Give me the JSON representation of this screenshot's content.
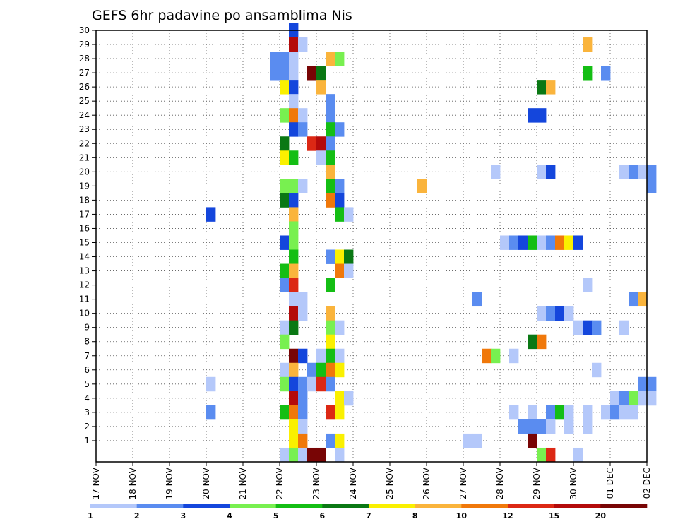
{
  "chart_data": {
    "type": "heatmap",
    "title": "GEFS 6hr padavine po ansamblima Nis",
    "xlabel": "",
    "ylabel": "",
    "x_tick_labels": [
      "17 NOV",
      "18 NOV",
      "19 NOV",
      "20 NOV",
      "21 NOV",
      "22 NOV",
      "23 NOV",
      "24 NOV",
      "25 NOV",
      "26 NOV",
      "27 NOV",
      "28 NOV",
      "29 NOV",
      "30 NOV",
      "01 DEC",
      "02 DEC"
    ],
    "y_tick_labels": [
      "1",
      "2",
      "3",
      "4",
      "5",
      "6",
      "7",
      "8",
      "9",
      "10",
      "11",
      "12",
      "13",
      "14",
      "15",
      "16",
      "17",
      "18",
      "19",
      "20",
      "21",
      "22",
      "23",
      "24",
      "25",
      "26",
      "27",
      "28",
      "29",
      "30"
    ],
    "xlim_steps": [
      0,
      60
    ],
    "ylim_members": [
      0,
      30
    ],
    "steps_per_day": 4,
    "grid": true,
    "legend_placement": "bottom",
    "legend_thresholds": [
      "1",
      "2",
      "3",
      "4",
      "5",
      "6",
      "7",
      "8",
      "10",
      "12",
      "15",
      "20"
    ],
    "colors": [
      "#b4c8fa",
      "#5a8cf0",
      "#1446dc",
      "#78f050",
      "#14be14",
      "#0a7814",
      "#faf000",
      "#fab43c",
      "#f0780a",
      "#dc2814",
      "#b40a0a",
      "#780505"
    ],
    "cells": [
      [
        21,
        30,
        2
      ],
      [
        21,
        29,
        10
      ],
      [
        22,
        29,
        0
      ],
      [
        53,
        29,
        7
      ],
      [
        19,
        28,
        1
      ],
      [
        20,
        28,
        1
      ],
      [
        21,
        28,
        0
      ],
      [
        25,
        28,
        7
      ],
      [
        26,
        28,
        3
      ],
      [
        19,
        27,
        1
      ],
      [
        20,
        27,
        1
      ],
      [
        21,
        27,
        0
      ],
      [
        23,
        27,
        11
      ],
      [
        24,
        27,
        5
      ],
      [
        53,
        27,
        4
      ],
      [
        55,
        27,
        1
      ],
      [
        20,
        26,
        6
      ],
      [
        21,
        26,
        2
      ],
      [
        24,
        26,
        7
      ],
      [
        48,
        26,
        5
      ],
      [
        49,
        26,
        7
      ],
      [
        21,
        25,
        0
      ],
      [
        25,
        25,
        1
      ],
      [
        20,
        24,
        3
      ],
      [
        21,
        24,
        8
      ],
      [
        22,
        24,
        0
      ],
      [
        25,
        24,
        1
      ],
      [
        47,
        24,
        2
      ],
      [
        48,
        24,
        2
      ],
      [
        21,
        23,
        2
      ],
      [
        22,
        23,
        1
      ],
      [
        25,
        23,
        4
      ],
      [
        26,
        23,
        1
      ],
      [
        20,
        22,
        5
      ],
      [
        23,
        22,
        9
      ],
      [
        24,
        22,
        10
      ],
      [
        25,
        22,
        1
      ],
      [
        20,
        21,
        6
      ],
      [
        21,
        21,
        4
      ],
      [
        24,
        21,
        0
      ],
      [
        25,
        21,
        4
      ],
      [
        25,
        20,
        7
      ],
      [
        43,
        20,
        0
      ],
      [
        48,
        20,
        0
      ],
      [
        49,
        20,
        2
      ],
      [
        57,
        20,
        0
      ],
      [
        58,
        20,
        1
      ],
      [
        59,
        20,
        0
      ],
      [
        60,
        20,
        1
      ],
      [
        20,
        19,
        3
      ],
      [
        21,
        19,
        3
      ],
      [
        22,
        19,
        0
      ],
      [
        25,
        19,
        4
      ],
      [
        26,
        19,
        1
      ],
      [
        35,
        19,
        7
      ],
      [
        60,
        19,
        1
      ],
      [
        20,
        18,
        5
      ],
      [
        21,
        18,
        2
      ],
      [
        25,
        18,
        8
      ],
      [
        26,
        18,
        2
      ],
      [
        21,
        17,
        7
      ],
      [
        26,
        17,
        4
      ],
      [
        27,
        17,
        0
      ],
      [
        12,
        17,
        2
      ],
      [
        21,
        16,
        3
      ],
      [
        20,
        15,
        2
      ],
      [
        21,
        15,
        3
      ],
      [
        44,
        15,
        0
      ],
      [
        45,
        15,
        1
      ],
      [
        46,
        15,
        2
      ],
      [
        47,
        15,
        4
      ],
      [
        48,
        15,
        0
      ],
      [
        49,
        15,
        1
      ],
      [
        50,
        15,
        8
      ],
      [
        51,
        15,
        6
      ],
      [
        52,
        15,
        2
      ],
      [
        21,
        14,
        4
      ],
      [
        25,
        14,
        1
      ],
      [
        26,
        14,
        6
      ],
      [
        27,
        14,
        5
      ],
      [
        20,
        13,
        4
      ],
      [
        21,
        13,
        7
      ],
      [
        26,
        13,
        8
      ],
      [
        27,
        13,
        0
      ],
      [
        20,
        12,
        1
      ],
      [
        21,
        12,
        9
      ],
      [
        25,
        12,
        4
      ],
      [
        53,
        12,
        0
      ],
      [
        21,
        11,
        0
      ],
      [
        22,
        11,
        0
      ],
      [
        41,
        11,
        1
      ],
      [
        58,
        11,
        1
      ],
      [
        59,
        11,
        7
      ],
      [
        21,
        10,
        10
      ],
      [
        22,
        10,
        0
      ],
      [
        25,
        10,
        7
      ],
      [
        48,
        10,
        0
      ],
      [
        49,
        10,
        1
      ],
      [
        50,
        10,
        2
      ],
      [
        51,
        10,
        0
      ],
      [
        20,
        9,
        0
      ],
      [
        21,
        9,
        5
      ],
      [
        25,
        9,
        3
      ],
      [
        26,
        9,
        0
      ],
      [
        52,
        9,
        0
      ],
      [
        53,
        9,
        2
      ],
      [
        54,
        9,
        1
      ],
      [
        57,
        9,
        0
      ],
      [
        20,
        8,
        3
      ],
      [
        25,
        8,
        6
      ],
      [
        47,
        8,
        5
      ],
      [
        48,
        8,
        8
      ],
      [
        21,
        7,
        11
      ],
      [
        22,
        7,
        2
      ],
      [
        24,
        7,
        0
      ],
      [
        25,
        7,
        4
      ],
      [
        26,
        7,
        0
      ],
      [
        42,
        7,
        8
      ],
      [
        43,
        7,
        3
      ],
      [
        45,
        7,
        0
      ],
      [
        20,
        6,
        0
      ],
      [
        21,
        6,
        7
      ],
      [
        23,
        6,
        1
      ],
      [
        24,
        6,
        4
      ],
      [
        25,
        6,
        8
      ],
      [
        26,
        6,
        6
      ],
      [
        54,
        6,
        0
      ],
      [
        12,
        5,
        0
      ],
      [
        20,
        5,
        3
      ],
      [
        21,
        5,
        2
      ],
      [
        22,
        5,
        1
      ],
      [
        23,
        5,
        0
      ],
      [
        24,
        5,
        9
      ],
      [
        25,
        5,
        1
      ],
      [
        59,
        5,
        1
      ],
      [
        60,
        5,
        1
      ],
      [
        21,
        4,
        10
      ],
      [
        22,
        4,
        1
      ],
      [
        26,
        4,
        6
      ],
      [
        27,
        4,
        0
      ],
      [
        56,
        4,
        0
      ],
      [
        57,
        4,
        1
      ],
      [
        58,
        4,
        3
      ],
      [
        59,
        4,
        0
      ],
      [
        60,
        4,
        0
      ],
      [
        12,
        3,
        1
      ],
      [
        20,
        3,
        4
      ],
      [
        21,
        3,
        8
      ],
      [
        22,
        3,
        1
      ],
      [
        25,
        3,
        9
      ],
      [
        26,
        3,
        6
      ],
      [
        45,
        3,
        0
      ],
      [
        47,
        3,
        0
      ],
      [
        49,
        3,
        1
      ],
      [
        50,
        3,
        4
      ],
      [
        51,
        3,
        0
      ],
      [
        53,
        3,
        0
      ],
      [
        55,
        3,
        0
      ],
      [
        56,
        3,
        1
      ],
      [
        57,
        3,
        0
      ],
      [
        58,
        3,
        0
      ],
      [
        21,
        2,
        6
      ],
      [
        22,
        2,
        0
      ],
      [
        46,
        2,
        1
      ],
      [
        47,
        2,
        1
      ],
      [
        48,
        2,
        1
      ],
      [
        49,
        2,
        0
      ],
      [
        51,
        2,
        0
      ],
      [
        53,
        2,
        0
      ],
      [
        21,
        1,
        6
      ],
      [
        22,
        1,
        8
      ],
      [
        25,
        1,
        1
      ],
      [
        26,
        1,
        6
      ],
      [
        40,
        1,
        0
      ],
      [
        41,
        1,
        0
      ],
      [
        47,
        1,
        11
      ],
      [
        20,
        0,
        0
      ],
      [
        21,
        0,
        3
      ],
      [
        26,
        0,
        0
      ],
      [
        22,
        0,
        0
      ],
      [
        23,
        0,
        11
      ],
      [
        24,
        0,
        11
      ],
      [
        48,
        0,
        3
      ],
      [
        49,
        0,
        9
      ],
      [
        52,
        0,
        0
      ]
    ]
  }
}
